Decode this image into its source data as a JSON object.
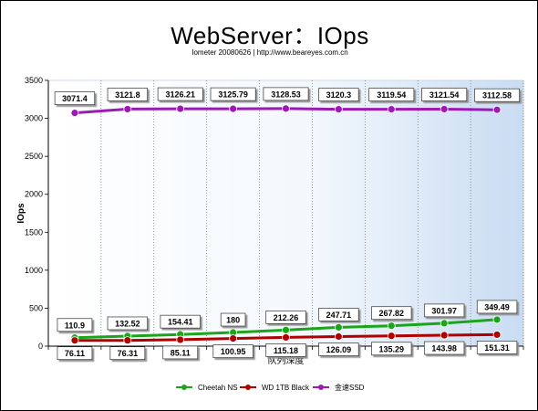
{
  "title": "WebServer：IOps",
  "subtitle": "Iometer 20080626 | http://www.beareyes.com.cn",
  "chart_data": {
    "type": "line",
    "title": "WebServer：IOps",
    "subtitle": "Iometer 20080626 | http://www.beareyes.com.cn",
    "xlabel": "队列深度",
    "ylabel": "IOps",
    "ylim": [
      0,
      3500
    ],
    "yticks": [
      0,
      500,
      1000,
      1500,
      2000,
      2500,
      3000,
      3500
    ],
    "grid": true,
    "legend_position": "bottom",
    "series": [
      {
        "name": "Cheetah NS",
        "color": "#1aa51a",
        "values": [
          110.9,
          132.52,
          154.41,
          180,
          212.26,
          247.71,
          267.82,
          301.97,
          349.49
        ]
      },
      {
        "name": "WD 1TB Black",
        "color": "#b00000",
        "values": [
          76.11,
          76.31,
          85.11,
          100.95,
          115.18,
          126.09,
          135.29,
          143.98,
          151.31
        ]
      },
      {
        "name": "金速SSD",
        "color": "#9c1ab4",
        "values": [
          3071.4,
          3121.8,
          3126.21,
          3125.79,
          3128.53,
          3120.3,
          3119.54,
          3121.54,
          3112.58
        ]
      }
    ]
  }
}
